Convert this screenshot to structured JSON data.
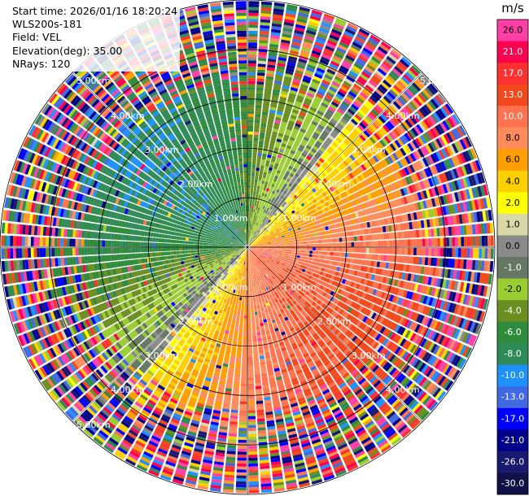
{
  "info": {
    "start_time": "Start time: 2026/01/16 18:20:24",
    "instrument": "WLS200s-181",
    "field": "Field: VEL",
    "elevation": "Elevation(deg): 35.00",
    "nrays": "NRays: 120"
  },
  "colorbar": {
    "unit": "m/s",
    "labels": [
      "26.0",
      "21.0",
      "17.0",
      "13.0",
      "10.0",
      "8.0",
      "6.0",
      "4.0",
      "2.0",
      "1.0",
      "0.0",
      "-1.0",
      "-2.0",
      "-4.0",
      "-6.0",
      "-8.0",
      "-10.0",
      "-13.0",
      "-17.0",
      "-21.0",
      "-26.0",
      "-30.0"
    ],
    "colors": [
      "#ff3fa6",
      "#ff0050",
      "#ff3030",
      "#f2481c",
      "#ff7250",
      "#ff8c5a",
      "#ff9e00",
      "#ffd000",
      "#ffff00",
      "#d8d8a8",
      "#8a8a8a",
      "#667766",
      "#9acd32",
      "#6b8e23",
      "#2e8b3c",
      "#2e8b57",
      "#1e90ff",
      "#4169e1",
      "#0000ff",
      "#00008b",
      "#191970",
      "#11114a"
    ],
    "label_colors": [
      "#000000",
      "#ffffff",
      "#ffffff",
      "#ffffff",
      "#ffffff",
      "#000000",
      "#000000",
      "#000000",
      "#000000",
      "#000000",
      "#000000",
      "#ffffff",
      "#000000",
      "#ffffff",
      "#ffffff",
      "#ffffff",
      "#ffffff",
      "#ffffff",
      "#ffffff",
      "#ffffff",
      "#ffffff",
      "#ffffff"
    ]
  },
  "range_labels": {
    "r1": "1.00km",
    "r2": "2.00km",
    "r3": "3.00km",
    "r4": "4.00km",
    "r5": "5.00km"
  },
  "chart_data": {
    "type": "heatmap",
    "projection": "polar-ppi",
    "field": "VEL",
    "units": "m/s",
    "elevation_deg": 35.0,
    "nrays": 120,
    "range_rings_km": [
      1,
      2,
      3,
      4,
      5
    ],
    "max_range_km": 5.0,
    "color_scale_ticks": [
      26.0,
      21.0,
      17.0,
      13.0,
      10.0,
      8.0,
      6.0,
      4.0,
      2.0,
      1.0,
      0.0,
      -1.0,
      -2.0,
      -4.0,
      -6.0,
      -8.0,
      -10.0,
      -13.0,
      -17.0,
      -21.0,
      -26.0,
      -30.0
    ],
    "radial_velocity_pattern": {
      "amplitude_ms": 9,
      "direction_of_max_positive_deg": 130,
      "noisy_beyond_km": 3.3
    }
  }
}
